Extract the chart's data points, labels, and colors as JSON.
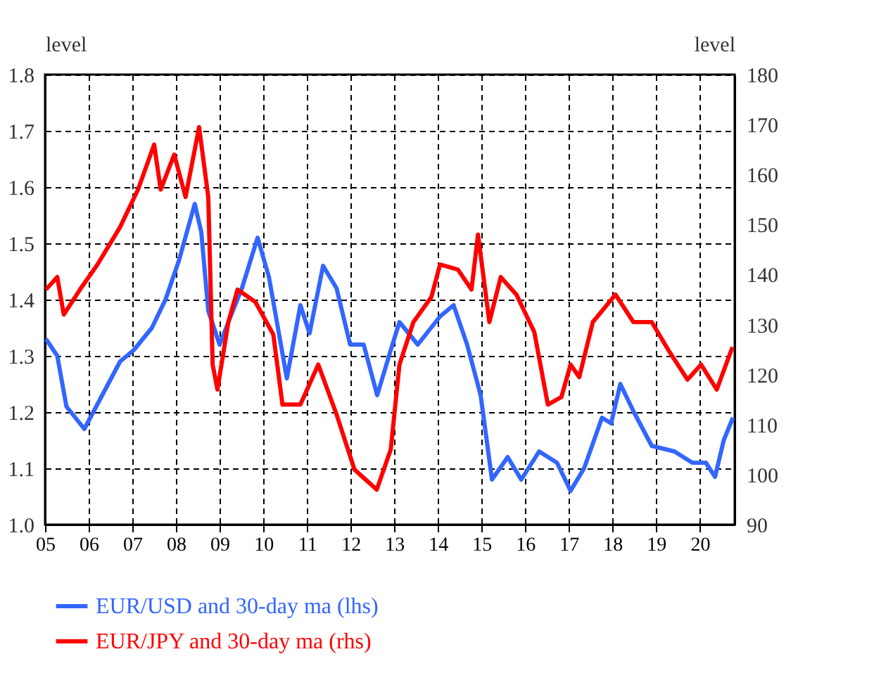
{
  "chart_data": {
    "type": "line",
    "ylabel": "level",
    "y2label": "level",
    "xlim": [
      2005,
      2020.8
    ],
    "xticks": [
      {
        "value": 2005,
        "label": "05"
      },
      {
        "value": 2006,
        "label": "06"
      },
      {
        "value": 2007,
        "label": "07"
      },
      {
        "value": 2008,
        "label": "08"
      },
      {
        "value": 2009,
        "label": "09"
      },
      {
        "value": 2010,
        "label": "10"
      },
      {
        "value": 2011,
        "label": "11"
      },
      {
        "value": 2012,
        "label": "12"
      },
      {
        "value": 2013,
        "label": "13"
      },
      {
        "value": 2014,
        "label": "14"
      },
      {
        "value": 2015,
        "label": "15"
      },
      {
        "value": 2016,
        "label": "16"
      },
      {
        "value": 2017,
        "label": "17"
      },
      {
        "value": 2018,
        "label": "18"
      },
      {
        "value": 2019,
        "label": "19"
      },
      {
        "value": 2020,
        "label": "20"
      }
    ],
    "ylim": [
      1.0,
      1.8
    ],
    "yticks": [
      {
        "value": 1.0,
        "label": "1.0"
      },
      1.1,
      1.2,
      1.3,
      1.4,
      1.5,
      1.6,
      1.7,
      1.8
    ],
    "y2lim": [
      90,
      180
    ],
    "y2ticks": [
      90,
      100,
      110,
      120,
      130,
      140,
      150,
      160,
      170,
      180
    ],
    "grid": true,
    "legend": "bottom",
    "series": [
      {
        "name": "EUR/USD and 30-day ma (lhs)",
        "color": "#3366ff",
        "axis": "y",
        "x": [
          2005.02,
          2005.28,
          2005.49,
          2005.9,
          2006.31,
          2006.72,
          2007.03,
          2007.45,
          2007.76,
          2008.07,
          2008.43,
          2008.58,
          2008.74,
          2009.0,
          2009.2,
          2009.51,
          2009.87,
          2010.13,
          2010.54,
          2010.85,
          2011.06,
          2011.37,
          2011.68,
          2011.99,
          2012.3,
          2012.61,
          2012.92,
          2013.12,
          2013.54,
          2014.05,
          2014.36,
          2014.67,
          2014.98,
          2015.24,
          2015.6,
          2015.91,
          2016.32,
          2016.73,
          2017.04,
          2017.35,
          2017.76,
          2017.97,
          2018.18,
          2018.49,
          2018.9,
          2019.42,
          2019.83,
          2020.14,
          2020.35,
          2020.55,
          2020.76
        ],
        "values": [
          1.33,
          1.3,
          1.21,
          1.17,
          1.23,
          1.29,
          1.31,
          1.35,
          1.4,
          1.47,
          1.57,
          1.52,
          1.38,
          1.32,
          1.36,
          1.42,
          1.51,
          1.44,
          1.26,
          1.39,
          1.34,
          1.46,
          1.42,
          1.32,
          1.32,
          1.23,
          1.31,
          1.36,
          1.32,
          1.37,
          1.39,
          1.32,
          1.23,
          1.08,
          1.12,
          1.08,
          1.13,
          1.11,
          1.06,
          1.1,
          1.19,
          1.18,
          1.25,
          1.2,
          1.14,
          1.13,
          1.11,
          1.11,
          1.085,
          1.15,
          1.19
        ]
      },
      {
        "name": "EUR/JPY and 30-day ma (rhs)",
        "color": "#ff0000",
        "axis": "y2",
        "x": [
          2005.02,
          2005.28,
          2005.43,
          2005.8,
          2006.2,
          2006.72,
          2007.13,
          2007.5,
          2007.65,
          2007.96,
          2008.22,
          2008.53,
          2008.74,
          2008.84,
          2008.95,
          2009.2,
          2009.41,
          2009.82,
          2010.23,
          2010.44,
          2010.85,
          2011.26,
          2011.68,
          2012.09,
          2012.6,
          2012.92,
          2013.12,
          2013.44,
          2013.85,
          2014.05,
          2014.46,
          2014.77,
          2014.92,
          2015.18,
          2015.44,
          2015.8,
          2016.21,
          2016.52,
          2016.83,
          2017.04,
          2017.24,
          2017.55,
          2018.07,
          2018.48,
          2018.9,
          2019.31,
          2019.72,
          2020.03,
          2020.39,
          2020.75
        ],
        "values": [
          137,
          139.5,
          132,
          137,
          142,
          149.5,
          157,
          166,
          157,
          164,
          155.5,
          169.5,
          155.5,
          122,
          117,
          130.5,
          137,
          134.5,
          128,
          114,
          114,
          122,
          112,
          101,
          97,
          105,
          122,
          130.5,
          135.5,
          142,
          141,
          137,
          148,
          130.5,
          139.5,
          136,
          128.5,
          114,
          115.5,
          122,
          119.5,
          130.5,
          136,
          130.5,
          130.5,
          124.5,
          119,
          122,
          117,
          125.5
        ]
      }
    ]
  }
}
